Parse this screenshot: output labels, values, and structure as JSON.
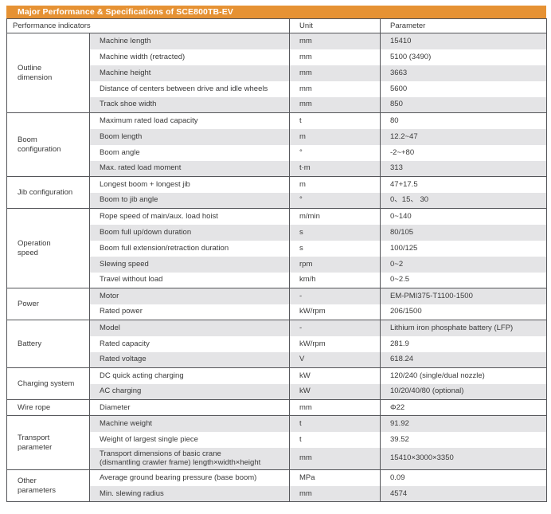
{
  "table": {
    "title": "Major Performance & Specifications of SCE800TB-EV",
    "columns": [
      "Performance indicators",
      "Unit",
      "Parameter"
    ],
    "sections": [
      {
        "category": "Outline\ndimension",
        "rows": [
          {
            "indicator": "Machine length",
            "unit": "mm",
            "parameter": "15410"
          },
          {
            "indicator": "Machine width (retracted)",
            "unit": "mm",
            "parameter": "5100 (3490)"
          },
          {
            "indicator": "Machine height",
            "unit": "mm",
            "parameter": "3663"
          },
          {
            "indicator": "Distance of centers between drive and idle wheels",
            "unit": "mm",
            "parameter": "5600"
          },
          {
            "indicator": "Track shoe width",
            "unit": "mm",
            "parameter": "850"
          }
        ]
      },
      {
        "category": "Boom\nconfiguration",
        "rows": [
          {
            "indicator": "Maximum rated load capacity",
            "unit": "t",
            "parameter": "80"
          },
          {
            "indicator": "Boom length",
            "unit": "m",
            "parameter": "12.2~47"
          },
          {
            "indicator": "Boom angle",
            "unit": "°",
            "parameter": "-2~+80"
          },
          {
            "indicator": "Max. rated load moment",
            "unit": "t·m",
            "parameter": "313"
          }
        ]
      },
      {
        "category": "Jib configuration",
        "rows": [
          {
            "indicator": "Longest boom + longest jib",
            "unit": "m",
            "parameter": "47+17.5"
          },
          {
            "indicator": "Boom to jib angle",
            "unit": "°",
            "parameter": "0、15、 30"
          }
        ]
      },
      {
        "category": "Operation\nspeed",
        "rows": [
          {
            "indicator": "Rope speed of main/aux. load hoist",
            "unit": "m/min",
            "parameter": "0~140"
          },
          {
            "indicator": "Boom full up/down duration",
            "unit": "s",
            "parameter": "80/105"
          },
          {
            "indicator": "Boom full extension/retraction duration",
            "unit": "s",
            "parameter": "100/125"
          },
          {
            "indicator": "Slewing speed",
            "unit": "rpm",
            "parameter": "0~2"
          },
          {
            "indicator": "Travel without load",
            "unit": "km/h",
            "parameter": "0~2.5"
          }
        ]
      },
      {
        "category": "Power",
        "rows": [
          {
            "indicator": "Motor",
            "unit": "-",
            "parameter": "EM-PMI375-T1100-1500"
          },
          {
            "indicator": "Rated power",
            "unit": "kW/rpm",
            "parameter": "206/1500"
          }
        ]
      },
      {
        "category": "Battery",
        "rows": [
          {
            "indicator": "Model",
            "unit": "-",
            "parameter": "Lithium iron phosphate battery (LFP)"
          },
          {
            "indicator": "Rated capacity",
            "unit": "kW/rpm",
            "parameter": "281.9"
          },
          {
            "indicator": "Rated voltage",
            "unit": "V",
            "parameter": "618.24"
          }
        ]
      },
      {
        "category": "Charging system",
        "rows": [
          {
            "indicator": "DC quick acting charging",
            "unit": "kW",
            "parameter": "120/240 (single/dual nozzle)"
          },
          {
            "indicator": "AC charging",
            "unit": "kW",
            "parameter": "10/20/40/80 (optional)"
          }
        ]
      },
      {
        "category": "Wire rope",
        "rows": [
          {
            "indicator": "Diameter",
            "unit": "mm",
            "parameter": "Φ22"
          }
        ]
      },
      {
        "category": "Transport\nparameter",
        "rows": [
          {
            "indicator": "Machine weight",
            "unit": "t",
            "parameter": "91.92"
          },
          {
            "indicator": "Weight of largest single piece",
            "unit": "t",
            "parameter": "39.52"
          },
          {
            "indicator": "Transport dimensions of basic crane\n(dismantling crawler frame) length×width×height",
            "unit": "mm",
            "parameter": "15410×3000×3350"
          }
        ]
      },
      {
        "category": "Other\nparameters",
        "rows": [
          {
            "indicator": "Average ground bearing pressure (base boom)",
            "unit": "MPa",
            "parameter": "0.09"
          },
          {
            "indicator": "Min. slewing radius",
            "unit": "mm",
            "parameter": "4574"
          }
        ]
      }
    ]
  },
  "colors": {
    "accent_orange": "#E69234",
    "row_alt_gray": "#E4E4E6",
    "border_dark": "#55565A",
    "title_text": "#FFFFFF",
    "body_text": "#3A3A3A"
  }
}
